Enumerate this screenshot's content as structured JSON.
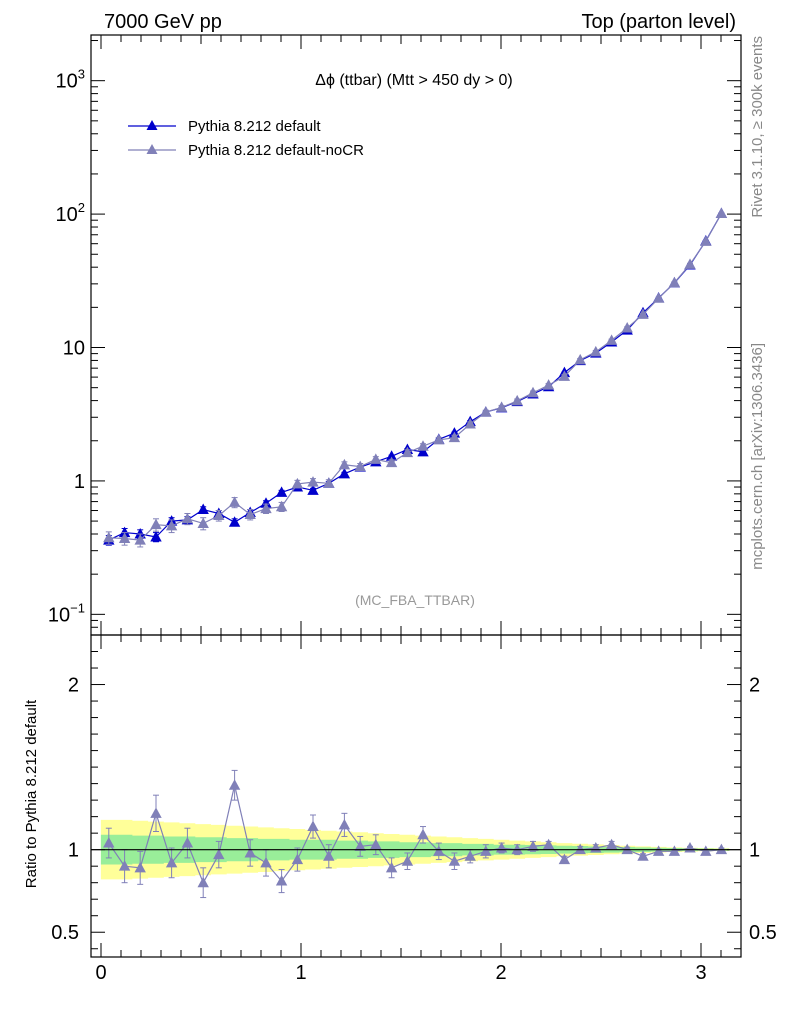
{
  "header": {
    "left": "7000 GeV pp",
    "right": "Top (parton level)"
  },
  "side_labels": {
    "rivet": "Rivet 3.1.10, ≥ 300k events",
    "mcplots": "mcplots.cern.ch [arXiv:1306.3436]"
  },
  "colors": {
    "default": "#0000cc",
    "nocr": "#8080b8",
    "band_yellow": "#ffff99",
    "band_green": "#99ee99"
  },
  "chart_data": [
    {
      "type": "line",
      "title": "Δϕ (ttbar) (Mtt > 450 dy > 0)",
      "watermark": "(MC_FBA_TTBAR)",
      "yscale": "log",
      "xlim": [
        -0.05,
        3.2
      ],
      "ylim": [
        0.07,
        2200
      ],
      "y_ticks": [
        {
          "v": 0.1,
          "base": "10",
          "exp": "−1"
        },
        {
          "v": 1,
          "base": "1",
          "exp": ""
        },
        {
          "v": 10,
          "base": "10",
          "exp": ""
        },
        {
          "v": 100,
          "base": "10",
          "exp": "2"
        },
        {
          "v": 1000,
          "base": "10",
          "exp": "3"
        }
      ],
      "legend_position": "top-left",
      "x": [
        0.039,
        0.118,
        0.196,
        0.275,
        0.353,
        0.432,
        0.511,
        0.589,
        0.668,
        0.746,
        0.825,
        0.903,
        0.982,
        1.06,
        1.139,
        1.217,
        1.296,
        1.374,
        1.453,
        1.532,
        1.61,
        1.689,
        1.767,
        1.846,
        1.924,
        2.003,
        2.081,
        2.16,
        2.238,
        2.317,
        2.396,
        2.474,
        2.553,
        2.631,
        2.71,
        2.788,
        2.867,
        2.945,
        3.024,
        3.102
      ],
      "series": [
        {
          "name": "Pythia 8.212 default",
          "color": "#0000cc",
          "values": [
            0.36,
            0.41,
            0.4,
            0.38,
            0.5,
            0.51,
            0.61,
            0.57,
            0.49,
            0.58,
            0.68,
            0.82,
            0.9,
            0.85,
            0.96,
            1.13,
            1.27,
            1.39,
            1.53,
            1.72,
            1.65,
            2.05,
            2.28,
            2.78,
            3.28,
            3.53,
            3.93,
            4.48,
            5.08,
            6.48,
            7.98,
            9.08,
            11.0,
            13.5,
            18.2,
            23.5,
            30.5,
            41.5,
            63.0,
            101.0
          ],
          "errors": [
            0.03,
            0.03,
            0.03,
            0.03,
            0.03,
            0.03,
            0.03,
            0.03,
            0.03,
            0.03,
            0.03,
            0.03,
            0.03,
            0.03,
            0.03,
            0.03,
            0.03,
            0.03,
            0.03,
            0.03,
            0.03,
            0.04,
            0.04,
            0.05,
            0.05,
            0.05,
            0.05,
            0.06,
            0.06,
            0.07,
            0.08,
            0.09,
            0.1,
            0.12,
            0.15,
            0.2,
            0.25,
            0.3,
            0.4,
            0.6
          ]
        },
        {
          "name": "Pythia 8.212 default-noCR",
          "color": "#8080b8",
          "values": [
            0.375,
            0.37,
            0.36,
            0.47,
            0.46,
            0.52,
            0.48,
            0.55,
            0.69,
            0.56,
            0.62,
            0.64,
            0.95,
            0.98,
            0.96,
            1.32,
            1.28,
            1.45,
            1.37,
            1.63,
            1.82,
            2.03,
            2.11,
            2.67,
            3.28,
            3.56,
            3.98,
            4.58,
            5.22,
            6.08,
            8.08,
            9.28,
            11.3,
            14.0,
            17.7,
            23.4,
            30.6,
            42.0,
            62.5,
            101.0
          ],
          "errors": [
            0.04,
            0.04,
            0.04,
            0.05,
            0.05,
            0.05,
            0.05,
            0.05,
            0.06,
            0.05,
            0.05,
            0.05,
            0.06,
            0.06,
            0.06,
            0.07,
            0.07,
            0.07,
            0.07,
            0.08,
            0.08,
            0.09,
            0.09,
            0.1,
            0.11,
            0.12,
            0.13,
            0.14,
            0.15,
            0.17,
            0.2,
            0.22,
            0.25,
            0.3,
            0.35,
            0.45,
            0.55,
            0.7,
            0.9,
            1.3
          ]
        }
      ]
    },
    {
      "type": "line",
      "ylabel": "Ratio to Pythia 8.212 default",
      "xlim": [
        -0.05,
        3.2
      ],
      "ylim": [
        0.35,
        2.3
      ],
      "y_ticks": [
        0.5,
        1,
        2
      ],
      "x_ticks": [
        0,
        1,
        2,
        3
      ],
      "x": [
        0.039,
        0.118,
        0.196,
        0.275,
        0.353,
        0.432,
        0.511,
        0.589,
        0.668,
        0.746,
        0.825,
        0.903,
        0.982,
        1.06,
        1.139,
        1.217,
        1.296,
        1.374,
        1.453,
        1.532,
        1.61,
        1.689,
        1.767,
        1.846,
        1.924,
        2.003,
        2.081,
        2.16,
        2.238,
        2.317,
        2.396,
        2.474,
        2.553,
        2.631,
        2.71,
        2.788,
        2.867,
        2.945,
        3.024,
        3.102
      ],
      "series": [
        {
          "name": "Pythia 8.212 default-noCR",
          "values": [
            1.04,
            0.9,
            0.89,
            1.22,
            0.92,
            1.04,
            0.8,
            0.97,
            1.39,
            0.98,
            0.92,
            0.81,
            0.94,
            1.14,
            0.96,
            1.15,
            1.02,
            1.03,
            0.89,
            0.93,
            1.09,
            0.99,
            0.93,
            0.96,
            0.99,
            1.01,
            1.0,
            1.02,
            1.03,
            0.94,
            1.0,
            1.01,
            1.03,
            1.0,
            0.96,
            0.99,
            0.99,
            1.01,
            0.99,
            1.0
          ],
          "errors": [
            0.09,
            0.1,
            0.1,
            0.11,
            0.09,
            0.09,
            0.09,
            0.08,
            0.09,
            0.08,
            0.08,
            0.07,
            0.07,
            0.07,
            0.07,
            0.07,
            0.06,
            0.06,
            0.06,
            0.05,
            0.05,
            0.05,
            0.05,
            0.04,
            0.04,
            0.03,
            0.03,
            0.03,
            0.02,
            0.02,
            0.02,
            0.02,
            0.02,
            0.015,
            0.015,
            0.012,
            0.01,
            0.01,
            0.01,
            0.01
          ]
        }
      ],
      "band_green": [
        0.09,
        0.09,
        0.085,
        0.085,
        0.08,
        0.08,
        0.075,
        0.075,
        0.07,
        0.07,
        0.065,
        0.065,
        0.06,
        0.06,
        0.06,
        0.055,
        0.055,
        0.05,
        0.05,
        0.045,
        0.045,
        0.04,
        0.04,
        0.035,
        0.035,
        0.03,
        0.03,
        0.028,
        0.026,
        0.024,
        0.022,
        0.02,
        0.018,
        0.016,
        0.014,
        0.012,
        0.01,
        0.008,
        0.007,
        0.006
      ],
      "band_yellow": [
        0.18,
        0.18,
        0.175,
        0.17,
        0.165,
        0.16,
        0.155,
        0.15,
        0.145,
        0.14,
        0.135,
        0.13,
        0.125,
        0.12,
        0.115,
        0.11,
        0.105,
        0.1,
        0.095,
        0.09,
        0.085,
        0.08,
        0.075,
        0.07,
        0.065,
        0.06,
        0.055,
        0.05,
        0.045,
        0.04,
        0.036,
        0.032,
        0.028,
        0.024,
        0.02,
        0.017,
        0.014,
        0.012,
        0.01,
        0.008
      ]
    }
  ]
}
